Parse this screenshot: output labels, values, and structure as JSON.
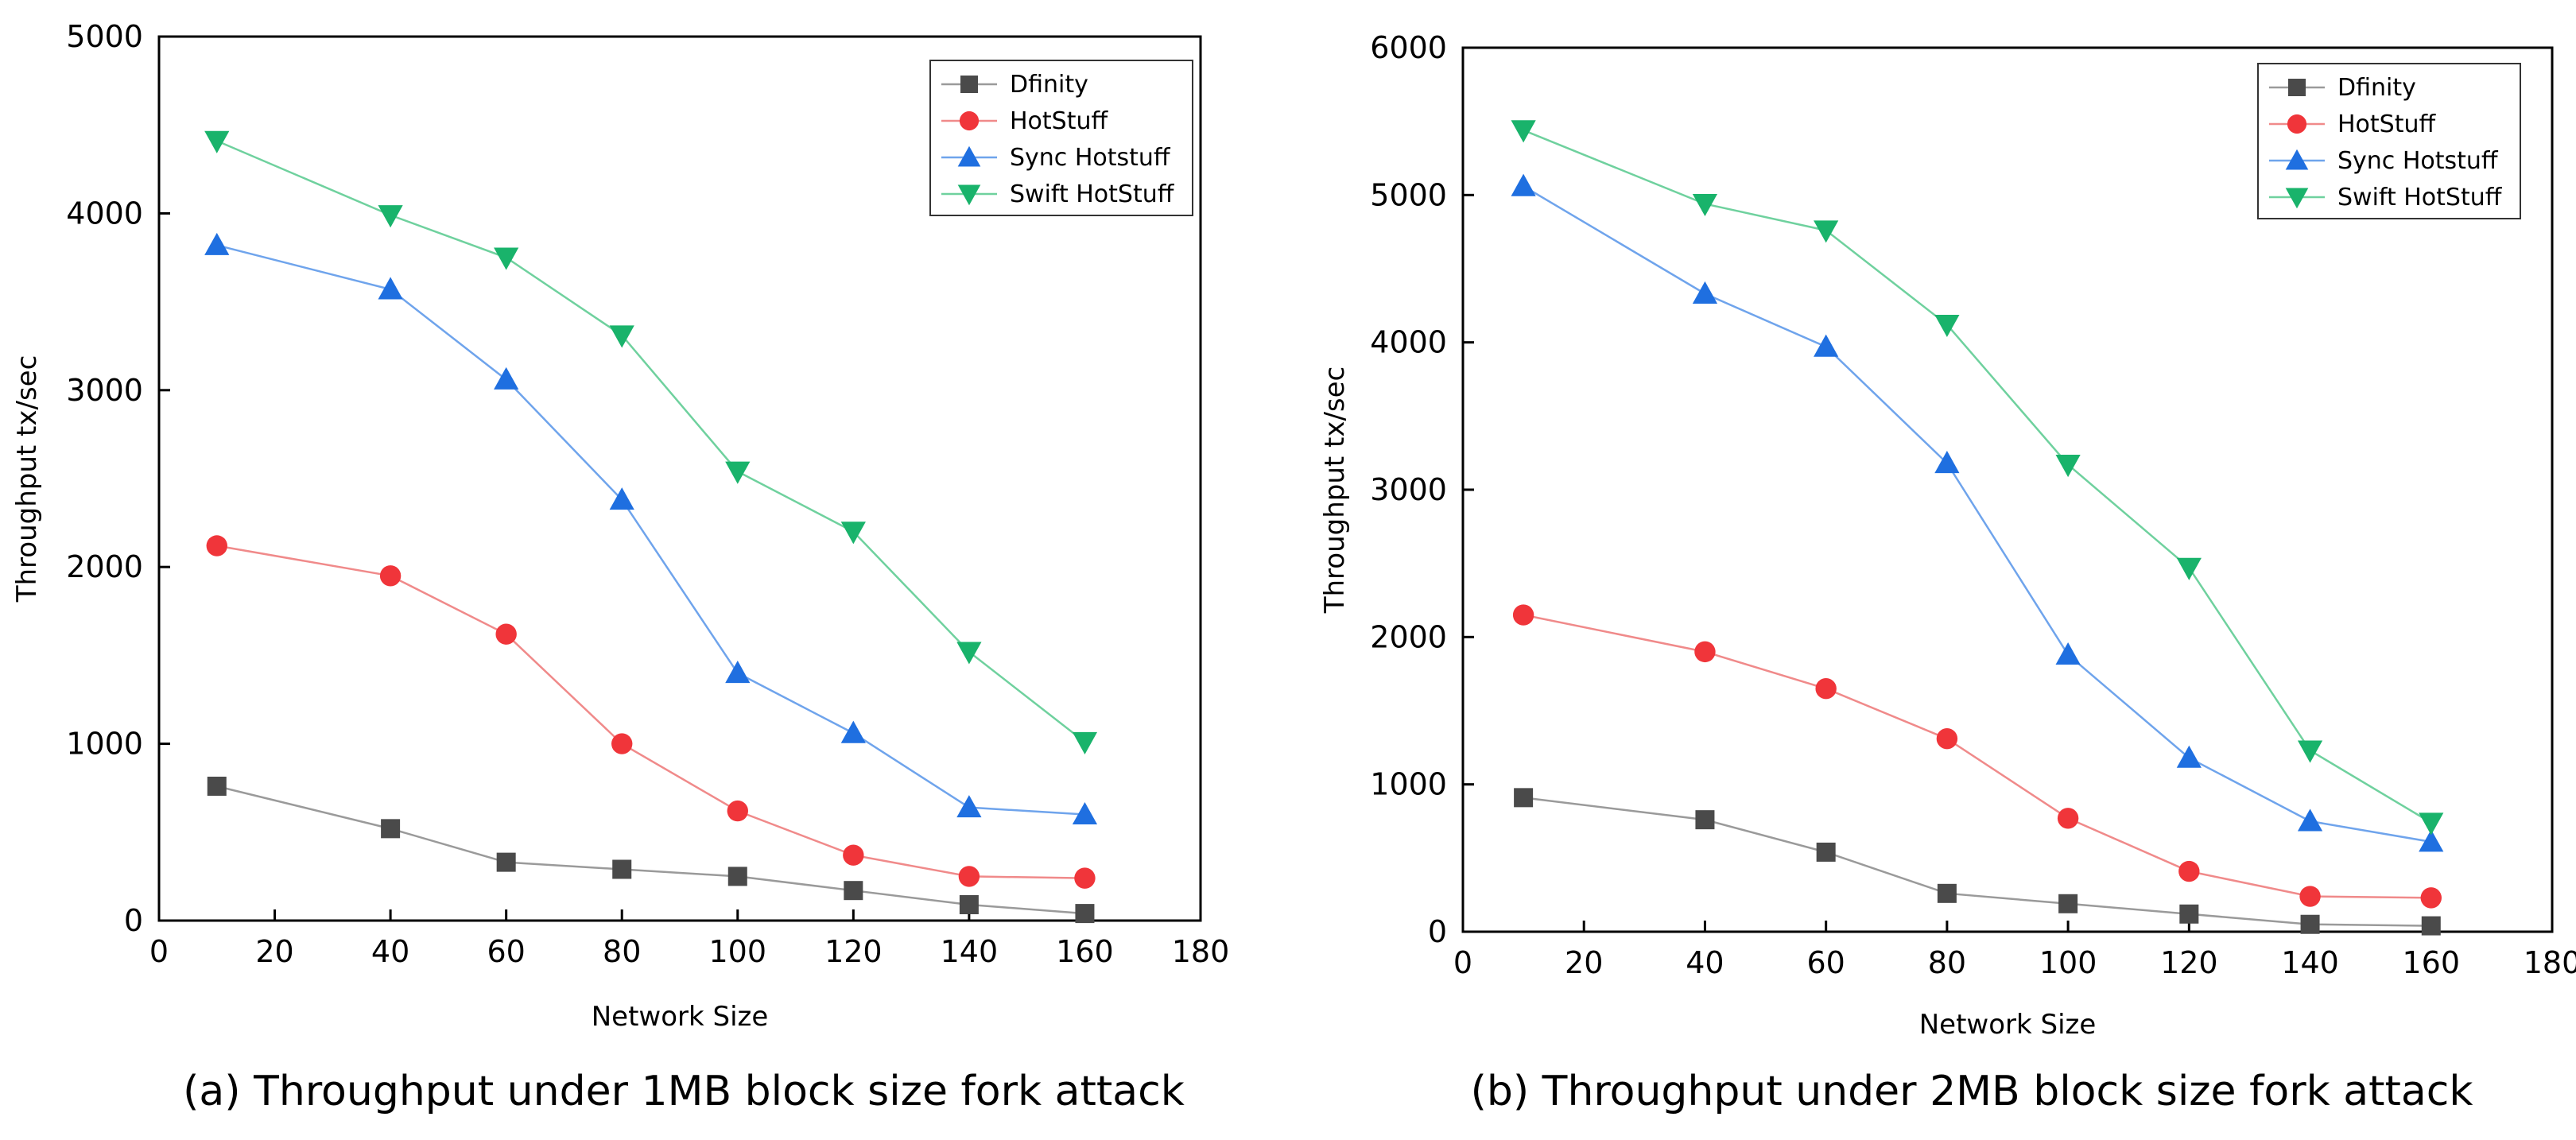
{
  "chart_data": [
    {
      "type": "line",
      "caption": "(a) Throughput under 1MB block size fork attack",
      "xlabel": "Network Size",
      "ylabel": "Throughput tx/sec",
      "xlim": [
        0,
        180
      ],
      "ylim": [
        0,
        5000
      ],
      "xticks": [
        "0",
        "20",
        "40",
        "60",
        "80",
        "100",
        "120",
        "140",
        "160",
        "180"
      ],
      "yticks": [
        "0",
        "1000",
        "2000",
        "3000",
        "4000",
        "5000"
      ],
      "legend_position": "top-right",
      "x": [
        10,
        40,
        60,
        80,
        100,
        120,
        140,
        160
      ],
      "series": [
        {
          "name": "Dfinity",
          "marker": "square",
          "color": "#4a4a4a",
          "line_color": "#9a9a9a",
          "values": [
            760,
            520,
            330,
            290,
            250,
            170,
            90,
            40
          ]
        },
        {
          "name": "HotStuff",
          "marker": "circle",
          "color": "#f0353a",
          "line_color": "#f08a8a",
          "values": [
            2120,
            1950,
            1620,
            1000,
            620,
            370,
            250,
            240
          ]
        },
        {
          "name": "Sync Hotstuff",
          "marker": "triangle-up",
          "color": "#1f6fe0",
          "line_color": "#6fa4ec",
          "values": [
            3820,
            3570,
            3060,
            2380,
            1400,
            1060,
            640,
            600
          ]
        },
        {
          "name": "Swift HotStuff",
          "marker": "triangle-down",
          "color": "#19b36b",
          "line_color": "#6fd19e",
          "values": [
            4410,
            3990,
            3750,
            3310,
            2540,
            2200,
            1520,
            1010
          ]
        }
      ]
    },
    {
      "type": "line",
      "caption": "(b) Throughput under 2MB block size fork attack",
      "xlabel": "Network Size",
      "ylabel": "Throughput tx/sec",
      "xlim": [
        0,
        180
      ],
      "ylim": [
        0,
        6000
      ],
      "xticks": [
        "0",
        "20",
        "40",
        "60",
        "80",
        "100",
        "120",
        "140",
        "160",
        "180"
      ],
      "yticks": [
        "0",
        "1000",
        "2000",
        "3000",
        "4000",
        "5000",
        "6000"
      ],
      "legend_position": "top-right",
      "x": [
        10,
        40,
        60,
        80,
        100,
        120,
        140,
        160
      ],
      "series": [
        {
          "name": "Dfinity",
          "marker": "square",
          "color": "#4a4a4a",
          "line_color": "#9a9a9a",
          "values": [
            910,
            760,
            540,
            260,
            190,
            120,
            50,
            40
          ]
        },
        {
          "name": "HotStuff",
          "marker": "circle",
          "color": "#f0353a",
          "line_color": "#f08a8a",
          "values": [
            2150,
            1900,
            1650,
            1310,
            770,
            410,
            240,
            230
          ]
        },
        {
          "name": "Sync Hotstuff",
          "marker": "triangle-up",
          "color": "#1f6fe0",
          "line_color": "#6fa4ec",
          "values": [
            5060,
            4330,
            3970,
            3180,
            1880,
            1180,
            750,
            610
          ]
        },
        {
          "name": "Swift HotStuff",
          "marker": "triangle-down",
          "color": "#19b36b",
          "line_color": "#6fd19e",
          "values": [
            5440,
            4940,
            4760,
            4120,
            3170,
            2470,
            1230,
            740
          ]
        }
      ]
    }
  ]
}
